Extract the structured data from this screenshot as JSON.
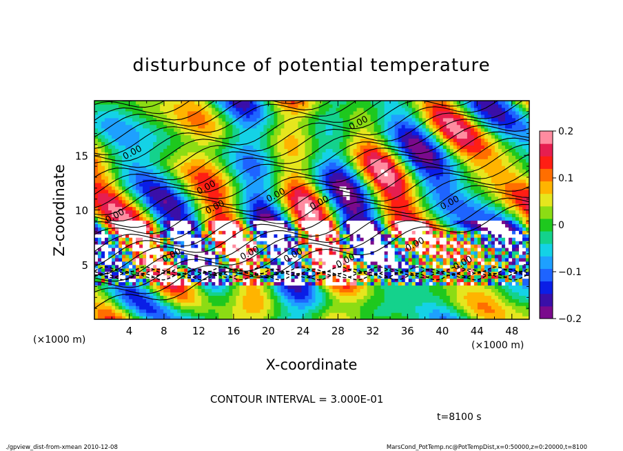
{
  "chart_data": {
    "type": "heatmap",
    "title": "disturbunce of potential temperature",
    "xlabel": "X-coordinate",
    "ylabel": "Z-coordinate",
    "x_unit_left": "(×1000 m)",
    "x_unit_right": "(×1000 m)",
    "xlim": [
      0,
      50
    ],
    "ylim": [
      0,
      20
    ],
    "xticks": [
      "4",
      "8",
      "12",
      "16",
      "20",
      "24",
      "28",
      "32",
      "36",
      "40",
      "44",
      "48"
    ],
    "yticks": [
      "5",
      "10",
      "15"
    ],
    "colorbar": {
      "range": [
        -0.2,
        0.2
      ],
      "tick_labels": [
        "0.2",
        "0.1",
        "0",
        "−0.1",
        "−0.2"
      ],
      "colors": [
        "#7a0a8c",
        "#3a0fa8",
        "#0a1ee6",
        "#1e64ff",
        "#1ea0ff",
        "#14d2e6",
        "#14d28c",
        "#1ec81e",
        "#8cdc14",
        "#e6e61e",
        "#ffb400",
        "#ff6e00",
        "#ff1e14",
        "#e61e50",
        "#ff8ca0"
      ]
    },
    "contour_interval": "CONTOUR INTERVAL = 3.000E-01",
    "contour_labels": [
      "0.00",
      "0.00",
      "0.00",
      "0.00",
      "0.00",
      "0.00",
      "0.00",
      "0.00",
      "0.00",
      "0.00",
      "0.00",
      "0.00",
      "0.00",
      "0.00"
    ],
    "time_label": "t=8100 s"
  },
  "footer": {
    "left": "./gpview_dist-from-xmean   2010-12-08",
    "right": "MarsCond_PotTemp.nc@PotTempDist,x=0:50000,z=0:20000,t=8100"
  }
}
